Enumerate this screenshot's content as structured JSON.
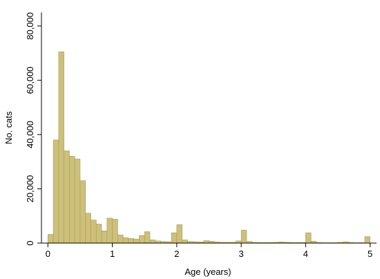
{
  "chart_data": {
    "type": "bar",
    "title": "",
    "xlabel": "Age (years)",
    "ylabel": "No. cats",
    "xlim": [
      -0.1,
      5.1
    ],
    "ylim": [
      0,
      85000
    ],
    "x_ticks": [
      0,
      1,
      2,
      3,
      4,
      5
    ],
    "x_tick_labels": [
      "0",
      "1",
      "2",
      "3",
      "4",
      "5"
    ],
    "y_ticks": [
      0,
      20000,
      40000,
      60000,
      80000
    ],
    "y_tick_labels": [
      "0",
      "20,000",
      "40,000",
      "60,000",
      "80,000"
    ],
    "grid": false,
    "legend": false,
    "bar_color": "#cdc07b",
    "bar_edge_color": "#a89a55",
    "bin_width": 0.0833,
    "bin_starts": [
      0.0,
      0.0833,
      0.1667,
      0.25,
      0.3333,
      0.4167,
      0.5,
      0.5833,
      0.6667,
      0.75,
      0.8333,
      0.9167,
      1.0,
      1.0833,
      1.1667,
      1.25,
      1.3333,
      1.4167,
      1.5,
      1.5833,
      1.6667,
      1.75,
      1.8333,
      1.9167,
      2.0,
      2.0833,
      2.1667,
      2.25,
      2.3333,
      2.4167,
      2.5,
      2.5833,
      2.6667,
      2.75,
      2.8333,
      2.9167,
      3.0,
      3.0833,
      3.1667,
      3.25,
      3.3333,
      3.4167,
      3.5,
      3.5833,
      3.6667,
      3.75,
      3.8333,
      3.9167,
      4.0,
      4.0833,
      4.1667,
      4.25,
      4.3333,
      4.4167,
      4.5,
      4.5833,
      4.6667,
      4.75,
      4.8333,
      4.9167
    ],
    "values": [
      3200,
      38000,
      70500,
      34000,
      32000,
      31000,
      23000,
      11000,
      8500,
      7000,
      4500,
      9200,
      8800,
      3000,
      2000,
      1700,
      1500,
      2800,
      4200,
      1200,
      800,
      600,
      500,
      3800,
      6800,
      1200,
      600,
      500,
      400,
      900,
      700,
      400,
      300,
      300,
      300,
      800,
      4800,
      600,
      300,
      200,
      200,
      200,
      300,
      400,
      300,
      200,
      200,
      200,
      3800,
      700,
      200,
      150,
      150,
      150,
      300,
      500,
      200,
      150,
      150,
      2400
    ]
  }
}
